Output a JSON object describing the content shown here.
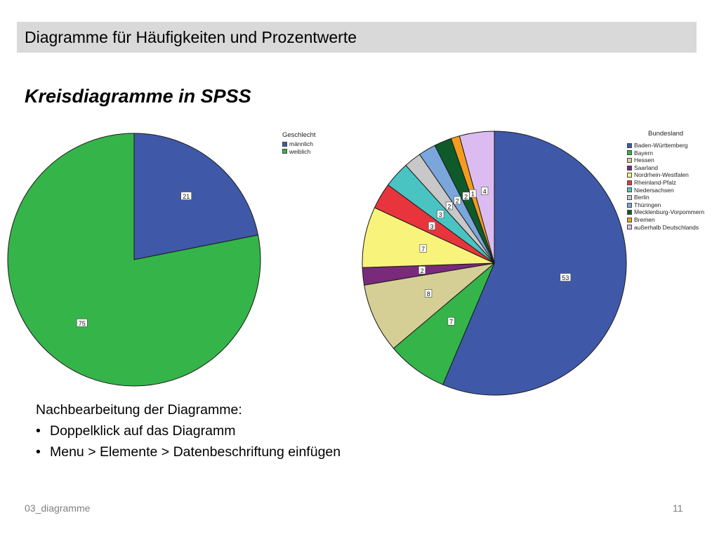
{
  "header": {
    "title": "Diagramme für Häufigkeiten und Prozentwerte"
  },
  "slide": {
    "title": "Kreisdiagramme in SPSS"
  },
  "chart_data": [
    {
      "type": "pie",
      "title": "",
      "legend_title": "Geschlecht",
      "legend_placement": "top-right",
      "start": "12 o'clock, clockwise",
      "slices": [
        {
          "name": "männlich",
          "value": 21,
          "color": "#3f59a8"
        },
        {
          "name": "weiblich",
          "value": 75,
          "color": "#35b44a"
        }
      ]
    },
    {
      "type": "pie",
      "title": "",
      "legend_title": "Bundesland",
      "legend_placement": "top-right",
      "start": "12 o'clock, clockwise",
      "slices": [
        {
          "name": "Baden-Württemberg",
          "value": 53,
          "color": "#3f59a8"
        },
        {
          "name": "Bayern",
          "value": 7,
          "color": "#35b44a"
        },
        {
          "name": "Hessen",
          "value": 8,
          "color": "#d5cf96"
        },
        {
          "name": "Saarland",
          "value": 2,
          "color": "#7a2a7a"
        },
        {
          "name": "Nordrhein-Westfalen",
          "value": 7,
          "color": "#f8f37a"
        },
        {
          "name": "Rheinland-Pfalz",
          "value": 3,
          "color": "#e8343c"
        },
        {
          "name": "Niedersachsen",
          "value": 3,
          "color": "#4ac3c3"
        },
        {
          "name": "Berlin",
          "value": 2,
          "color": "#c8c8c8"
        },
        {
          "name": "Thüringen",
          "value": 2,
          "color": "#7aa6dc"
        },
        {
          "name": "Mecklenburg-Vorpommern",
          "value": 2,
          "color": "#0e5a2a"
        },
        {
          "name": "Bremen",
          "value": 1,
          "color": "#f39c1e"
        },
        {
          "name": "außerhalb Deutschlands",
          "value": 4,
          "color": "#dcbcf0"
        }
      ]
    }
  ],
  "notes": {
    "heading": "Nachbearbeitung der Diagramme:",
    "items": [
      "Doppelklick auf das Diagramm",
      "Menu > Elemente > Datenbeschriftung einfügen"
    ]
  },
  "footer": {
    "left": "03_diagramme",
    "page": "11"
  }
}
